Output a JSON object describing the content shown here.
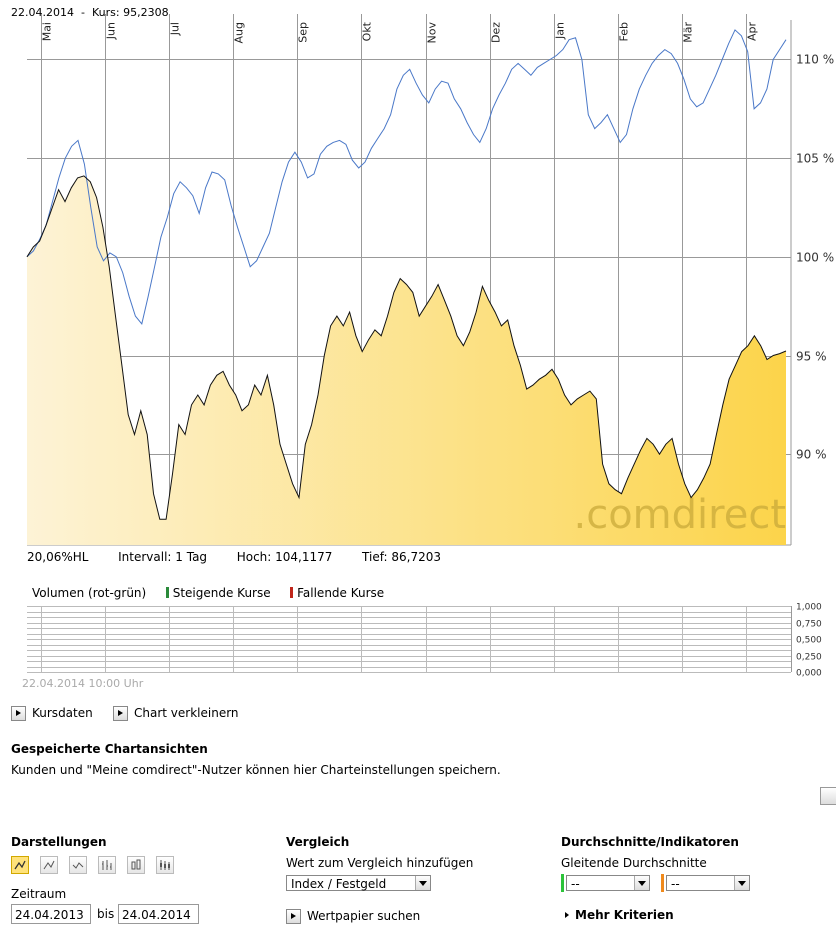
{
  "header": {
    "date": "22.04.2014",
    "separator": "-",
    "kurs_label": "Kurs:",
    "kurs_value": "95,2308"
  },
  "stats": {
    "hl": "20,06%HL",
    "intervall": "Intervall: 1 Tag",
    "hoch": "Hoch: 104,1177",
    "tief": "Tief: 86,7203"
  },
  "watermark": ".comdirect",
  "volume": {
    "title": "Volumen (rot-grün)",
    "rising_label": "Steigende Kurse",
    "falling_label": "Fallende Kurse",
    "rising_color": "#2a8a3a",
    "falling_color": "#c0261b",
    "timestamp": "22.04.2014 10:00 Uhr",
    "ticks": [
      "1,000",
      "0,750",
      "0,500",
      "0,250",
      "0,000"
    ]
  },
  "buttons": {
    "kursdaten": "Kursdaten",
    "verkleinern": "Chart verkleinern"
  },
  "saved": {
    "title": "Gespeicherte Chartansichten",
    "text": "Kunden und \"Meine comdirect\"-Nutzer können hier Charteinstellungen speichern."
  },
  "darstellungen": {
    "title": "Darstellungen",
    "icons": [
      "line-chart-icon",
      "line-chart-alt-icon",
      "mountain-chart-icon",
      "ohlc-chart-icon",
      "bar-chart-icon",
      "candlestick-icon"
    ]
  },
  "zeitraum": {
    "label": "Zeitraum",
    "from": "24.04.2013",
    "bis": "bis",
    "to": "24.04.2014"
  },
  "vergleich": {
    "title": "Vergleich",
    "subtitle": "Wert zum Vergleich hinzufügen",
    "select_value": "Index / Festgeld",
    "search_label": "Wertpapier suchen"
  },
  "indikatoren": {
    "title": "Durchschnitte/Indikatoren",
    "subtitle": "Gleitende Durchschnitte",
    "select1": "--",
    "select2": "--",
    "color1": "#2cc33a",
    "color2": "#f08a1c",
    "more_label": "Mehr Kriterien"
  },
  "colors": {
    "main_line": "#111111",
    "compare_line": "#4a78c8",
    "area_light": "#fdf3d6",
    "area_dark": "#fcd44a",
    "grid": "#999999"
  },
  "chart_data": {
    "type": "line",
    "x_labels": [
      "Mai",
      "Jun",
      "Jul",
      "Aug",
      "Sep",
      "Okt",
      "Nov",
      "Dez",
      "Jan",
      "Feb",
      "Mär",
      "Apr"
    ],
    "y_ticks": [
      "90 %",
      "95 %",
      "100 %",
      "105 %",
      "110 %"
    ],
    "ylim": [
      85.4,
      112
    ],
    "series": [
      {
        "name": "",
        "values": [
          100,
          100.5,
          100.8,
          101.6,
          102.5,
          103.4,
          102.8,
          103.5,
          104.0,
          104.1,
          103.8,
          103.0,
          101.5,
          99.5,
          97.0,
          94.5,
          92.0,
          91.0,
          92.2,
          91.0,
          88.0,
          86.7,
          86.7,
          89.0,
          91.5,
          91.0,
          92.5,
          93.0,
          92.5,
          93.5,
          94.0,
          94.2,
          93.5,
          93.0,
          92.2,
          92.5,
          93.5,
          93.0,
          94.0,
          92.5,
          90.5,
          89.5,
          88.5,
          87.8,
          90.5,
          91.5,
          93.0,
          95.0,
          96.5,
          97.0,
          96.5,
          97.2,
          96.0,
          95.2,
          95.8,
          96.3,
          96.0,
          97.0,
          98.2,
          98.9,
          98.6,
          98.2,
          97.0,
          97.5,
          98.0,
          98.6,
          97.8,
          97.0,
          96.0,
          95.5,
          96.2,
          97.2,
          98.5,
          97.8,
          97.2,
          96.5,
          96.8,
          95.5,
          94.5,
          93.3,
          93.5,
          93.8,
          94.0,
          94.3,
          93.8,
          93.0,
          92.5,
          92.8,
          93.0,
          93.2,
          92.8,
          89.5,
          88.5,
          88.2,
          88.0,
          88.8,
          89.5,
          90.2,
          90.8,
          90.5,
          90.0,
          90.5,
          90.8,
          89.5,
          88.5,
          87.8,
          88.2,
          88.8,
          89.5,
          91.0,
          92.5,
          93.8,
          94.5,
          95.2,
          95.5,
          96.0,
          95.5,
          94.8,
          95.0,
          95.1,
          95.23
        ]
      },
      {
        "name": "",
        "values": [
          100,
          100.3,
          100.9,
          101.6,
          102.8,
          104.0,
          105.0,
          105.6,
          105.9,
          104.7,
          102.5,
          100.5,
          99.8,
          100.2,
          100.0,
          99.2,
          98.0,
          97.0,
          96.6,
          98.0,
          99.5,
          101.0,
          102.0,
          103.2,
          103.8,
          103.5,
          103.1,
          102.2,
          103.5,
          104.3,
          104.2,
          103.9,
          102.6,
          101.5,
          100.5,
          99.5,
          99.8,
          100.5,
          101.2,
          102.5,
          103.8,
          104.8,
          105.3,
          104.8,
          104.0,
          104.2,
          105.2,
          105.6,
          105.8,
          105.9,
          105.7,
          104.9,
          104.5,
          104.8,
          105.5,
          106.0,
          106.5,
          107.2,
          108.5,
          109.2,
          109.5,
          108.8,
          108.2,
          107.8,
          108.5,
          108.9,
          108.8,
          108.0,
          107.5,
          106.8,
          106.2,
          105.8,
          106.5,
          107.5,
          108.2,
          108.8,
          109.5,
          109.8,
          109.5,
          109.2,
          109.6,
          109.8,
          110.0,
          110.2,
          110.5,
          111.0,
          111.1,
          110.0,
          107.2,
          106.5,
          106.8,
          107.2,
          106.5,
          105.8,
          106.2,
          107.5,
          108.5,
          109.2,
          109.8,
          110.2,
          110.5,
          110.3,
          109.8,
          109.0,
          108.0,
          107.6,
          107.8,
          108.5,
          109.2,
          110.0,
          110.8,
          111.5,
          111.2,
          110.4,
          107.5,
          107.8,
          108.5,
          110.0,
          110.5,
          111.0
        ]
      }
    ],
    "grid": true
  }
}
